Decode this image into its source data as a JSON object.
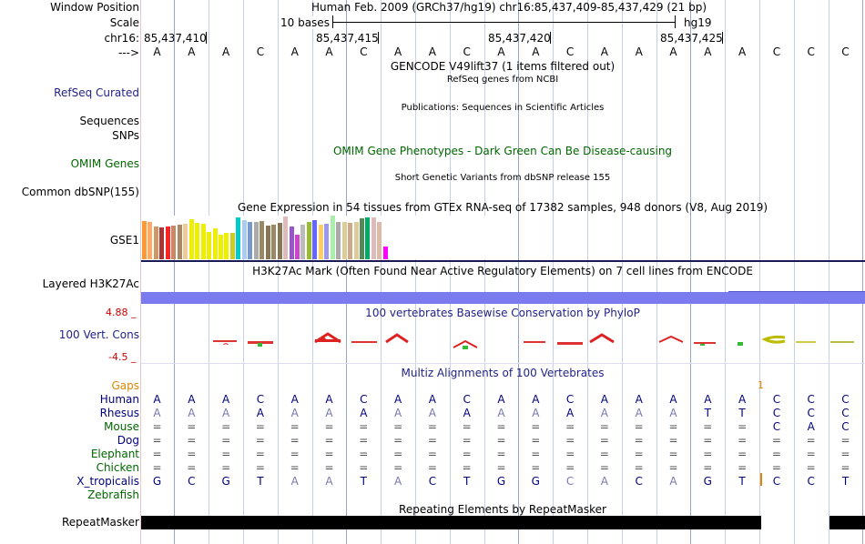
{
  "header": {
    "window_position_label": "Window Position",
    "window_position_value": "Human Feb. 2009 (GRCh37/hg19)   chr16:85,437,409-85,437,429 (21 bp)",
    "scale_label": "Scale",
    "scale_text": "10 bases",
    "scale_assembly": "hg19",
    "chrom_label": "chr16:",
    "positions": [
      "85,437,410",
      "85,437,415",
      "85,437,420",
      "85,437,425"
    ],
    "strand_label": "--->"
  },
  "sequence": [
    "A",
    "A",
    "A",
    "C",
    "A",
    "A",
    "C",
    "A",
    "A",
    "C",
    "A",
    "A",
    "C",
    "A",
    "A",
    "A",
    "A",
    "A",
    "C",
    "C",
    "C"
  ],
  "tracks": {
    "gencode_title": "GENCODE V49lift37 (1 items filtered out)",
    "refseq_title": "RefSeq genes from NCBI",
    "refseq_label": "RefSeq Curated",
    "publications_title": "Publications: Sequences in Scientific Articles",
    "sequences_label": "Sequences",
    "snps_label": "SNPs",
    "omim_title": "OMIM Gene Phenotypes - Dark Green Can Be Disease-causing",
    "omim_label": "OMIM Genes",
    "dbsnp_title": "Short Genetic Variants from dbSNP release 155",
    "dbsnp_label": "Common dbSNP(155)",
    "gtex_title": "Gene Expression in 54 tissues from GTEx RNA-seq of 17382 samples, 948 donors (V8, Aug 2019)",
    "gtex_label": "GSE1",
    "h3k27ac_title": "H3K27Ac Mark (Often Found Near Active Regulatory Elements) on 7 cell lines from ENCODE",
    "h3k27ac_label": "Layered H3K27Ac",
    "phylop_title": "100 vertebrates Basewise Conservation by PhyloP",
    "phylop_label": "100 Vert. Cons",
    "phylop_max": "4.88 _",
    "phylop_min": "-4.5 _",
    "multiz_title": "Multiz Alignments of 100 Vertebrates",
    "gaps_label": "Gaps",
    "gaps_mark": "1",
    "repeat_title": "Repeating Elements by RepeatMasker",
    "repeat_label": "RepeatMasker"
  },
  "gtex_bars": [
    {
      "value": 0.88,
      "color": "#ff9933"
    },
    {
      "value": 0.85,
      "color": "#ffaa66"
    },
    {
      "value": 0.76,
      "color": "#cc9966"
    },
    {
      "value": 0.72,
      "color": "#aa3333"
    },
    {
      "value": 0.74,
      "color": "#ff2222"
    },
    {
      "value": 0.78,
      "color": "#cc8866"
    },
    {
      "value": 0.8,
      "color": "#aa8866"
    },
    {
      "value": 0.82,
      "color": "#eecc99"
    },
    {
      "value": 0.92,
      "color": "#eeee00"
    },
    {
      "value": 0.84,
      "color": "#eeee00"
    },
    {
      "value": 0.82,
      "color": "#eeee00"
    },
    {
      "value": 0.62,
      "color": "#eeee00"
    },
    {
      "value": 0.7,
      "color": "#eeee00"
    },
    {
      "value": 0.56,
      "color": "#eeee00"
    },
    {
      "value": 0.6,
      "color": "#eeee00"
    },
    {
      "value": 0.6,
      "color": "#cccc22"
    },
    {
      "value": 0.96,
      "color": "#00cccc"
    },
    {
      "value": 0.9,
      "color": "#aaccee"
    },
    {
      "value": 0.86,
      "color": "#7799cc"
    },
    {
      "value": 0.86,
      "color": "#aaaaaa"
    },
    {
      "value": 0.88,
      "color": "#998866"
    },
    {
      "value": 0.78,
      "color": "#887755"
    },
    {
      "value": 0.8,
      "color": "#998866"
    },
    {
      "value": 0.84,
      "color": "#887755"
    },
    {
      "value": 0.98,
      "color": "#ddbbbb"
    },
    {
      "value": 0.76,
      "color": "#9955cc"
    },
    {
      "value": 0.56,
      "color": "#cc44cc"
    },
    {
      "value": 0.8,
      "color": "#bbbbbb"
    },
    {
      "value": 0.86,
      "color": "#99bb33"
    },
    {
      "value": 0.9,
      "color": "#6666ff"
    },
    {
      "value": 0.8,
      "color": "#ffcc66"
    },
    {
      "value": 0.82,
      "color": "#9999ee"
    },
    {
      "value": 1.0,
      "color": "#aaeeaa"
    },
    {
      "value": 0.86,
      "color": "#aaaaaa"
    },
    {
      "value": 0.86,
      "color": "#ddcc99"
    },
    {
      "value": 0.84,
      "color": "#ccaa88"
    },
    {
      "value": 0.86,
      "color": "#ddcc99"
    },
    {
      "value": 0.94,
      "color": "#558855"
    },
    {
      "value": 0.96,
      "color": "#00aa66"
    },
    {
      "value": 0.96,
      "color": "#ddbbbb"
    },
    {
      "value": 0.86,
      "color": "#ddbbaa"
    },
    {
      "value": 0.3,
      "color": "#ff00ff"
    }
  ],
  "alignment": [
    {
      "name": "Human",
      "color": "#00007f",
      "bases": [
        "A",
        "A",
        "A",
        "C",
        "A",
        "A",
        "C",
        "A",
        "A",
        "C",
        "A",
        "A",
        "C",
        "A",
        "A",
        "A",
        "A",
        "A",
        "C",
        "C",
        "C"
      ]
    },
    {
      "name": "Rhesus",
      "color": "#00007f",
      "bases": [
        "A",
        "A",
        "A",
        "A",
        "A",
        "A",
        "A",
        "A",
        "A",
        "A",
        "A",
        "A",
        "A",
        "A",
        "A",
        "A",
        "T",
        "T",
        "C",
        "C",
        "C"
      ]
    },
    {
      "name": "Mouse",
      "color": "#006600",
      "bases": [
        "=",
        "=",
        "=",
        "=",
        "=",
        "=",
        "=",
        "=",
        "=",
        "=",
        "=",
        "=",
        "=",
        "=",
        "=",
        "=",
        "=",
        "=",
        "C",
        "A",
        "C"
      ]
    },
    {
      "name": "Dog",
      "color": "#00007f",
      "bases": [
        "=",
        "=",
        "=",
        "=",
        "=",
        "=",
        "=",
        "=",
        "=",
        "=",
        "=",
        "=",
        "=",
        "=",
        "=",
        "=",
        "=",
        "=",
        "=",
        "=",
        "="
      ]
    },
    {
      "name": "Elephant",
      "color": "#006600",
      "bases": [
        "=",
        "=",
        "=",
        "=",
        "=",
        "=",
        "=",
        "=",
        "=",
        "=",
        "=",
        "=",
        "=",
        "=",
        "=",
        "=",
        "=",
        "=",
        "=",
        "=",
        "="
      ]
    },
    {
      "name": "Chicken",
      "color": "#006600",
      "bases": [
        "=",
        "=",
        "=",
        "=",
        "=",
        "=",
        "=",
        "=",
        "=",
        "=",
        "=",
        "=",
        "=",
        "=",
        "=",
        "=",
        "=",
        "=",
        "=",
        "=",
        "="
      ]
    },
    {
      "name": "X_tropicalis",
      "color": "#00007f",
      "bases": [
        "G",
        "C",
        "G",
        "T",
        "A",
        "A",
        "T",
        "A",
        "C",
        "T",
        "G",
        "G",
        "C",
        "A",
        "C",
        "A",
        "G",
        "T",
        "C",
        "C",
        "T"
      ]
    },
    {
      "name": "Zebrafish",
      "color": "#006600",
      "bases": [
        "",
        "",
        "",
        "",
        "",
        "",
        "",
        "",
        "",
        "",
        "",
        "",
        "",
        "",
        "",
        "",
        "",
        "",
        "",
        "",
        ""
      ]
    }
  ],
  "colors": {
    "label_blue": "#222288",
    "omim_green": "#006600",
    "gaps_orange": "#dd8800",
    "phylop_blue": "#222288",
    "h3k27ac_bar": "#7b7bf0",
    "repeat_bar": "#000000"
  }
}
